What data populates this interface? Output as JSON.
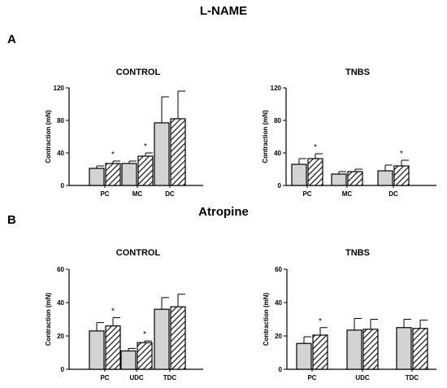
{
  "headings": {
    "top": "L-NAME",
    "bottom": "Atropine",
    "panel_a": "A",
    "panel_b": "B"
  },
  "colors": {
    "control_bar": "#d3d3d3",
    "treated_bar": "#ffffff",
    "hatch": "#000000"
  },
  "chart_data": [
    {
      "type": "bar",
      "title": "CONTROL",
      "ylabel": "Contraction (mN)",
      "ylim": [
        0,
        120
      ],
      "yticks": [
        0,
        40,
        80,
        120
      ],
      "categories": [
        "PC",
        "MC",
        "DC"
      ],
      "series": [
        {
          "fill": "solid",
          "values": [
            21,
            27,
            77
          ],
          "errors": [
            3,
            3,
            32
          ]
        },
        {
          "fill": "hatched",
          "values": [
            27,
            36,
            82
          ],
          "errors": [
            3,
            4,
            34
          ]
        }
      ],
      "significance": [
        {
          "category": "PC",
          "series": 1,
          "label": "*"
        },
        {
          "category": "MC",
          "series": 1,
          "label": "*"
        }
      ]
    },
    {
      "type": "bar",
      "title": "TNBS",
      "ylabel": "Contraction (mN)",
      "ylim": [
        0,
        120
      ],
      "yticks": [
        0,
        40,
        80,
        120
      ],
      "categories": [
        "PC",
        "MC",
        "DC"
      ],
      "series": [
        {
          "fill": "solid",
          "values": [
            26,
            14,
            18
          ],
          "errors": [
            7,
            3,
            7
          ]
        },
        {
          "fill": "hatched",
          "values": [
            33,
            17,
            24
          ],
          "errors": [
            6,
            3,
            7
          ]
        }
      ],
      "significance": [
        {
          "category": "PC",
          "series": 1,
          "label": "*"
        },
        {
          "category": "DC",
          "series": 1,
          "label": "*"
        }
      ]
    },
    {
      "type": "bar",
      "title": "CONTROL",
      "ylabel": "Contraction (mN)",
      "ylim": [
        0,
        60
      ],
      "yticks": [
        0,
        20,
        40,
        60
      ],
      "categories": [
        "PC",
        "UDC",
        "TDC"
      ],
      "series": [
        {
          "fill": "solid",
          "values": [
            23,
            11,
            36
          ],
          "errors": [
            5,
            1.5,
            7
          ]
        },
        {
          "fill": "hatched",
          "values": [
            26,
            16,
            37.5
          ],
          "errors": [
            5,
            1,
            7.5
          ]
        }
      ],
      "significance": [
        {
          "category": "PC",
          "series": 1,
          "label": "*"
        },
        {
          "category": "UDC",
          "series": 1,
          "label": "*"
        }
      ]
    },
    {
      "type": "bar",
      "title": "TNBS",
      "ylabel": "Contraction (mN)",
      "ylim": [
        0,
        60
      ],
      "yticks": [
        0,
        20,
        40,
        60
      ],
      "categories": [
        "PC",
        "UDC",
        "TDC"
      ],
      "series": [
        {
          "fill": "solid",
          "values": [
            15.5,
            23.5,
            25
          ],
          "errors": [
            4,
            7,
            5
          ]
        },
        {
          "fill": "hatched",
          "values": [
            20.5,
            24,
            24.5
          ],
          "errors": [
            4.5,
            6,
            5
          ]
        }
      ],
      "significance": [
        {
          "category": "PC",
          "series": 1,
          "label": "*"
        }
      ]
    }
  ]
}
